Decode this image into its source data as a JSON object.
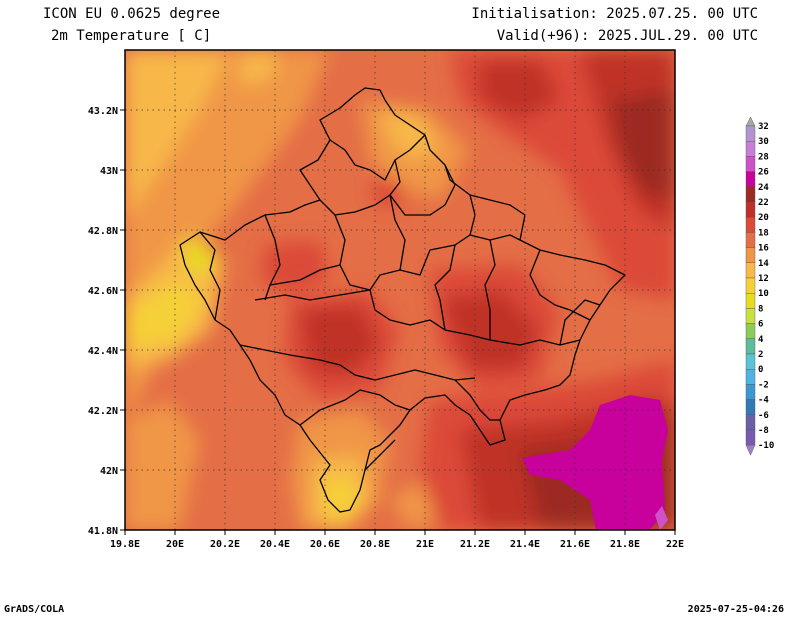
{
  "header": {
    "model": "ICON EU 0.0625 degree",
    "variable": "2m Temperature [ C]",
    "init": "Initialisation: 2025.07.25. 00 UTC",
    "valid": "Valid(+96): 2025.JUL.29. 00 UTC"
  },
  "footer": {
    "software": "GrADS/COLA",
    "timestamp": "2025-07-25-04:26"
  },
  "axes": {
    "x_ticks": [
      "19.8E",
      "20E",
      "20.2E",
      "20.4E",
      "20.6E",
      "20.8E",
      "21E",
      "21.2E",
      "21.4E",
      "21.6E",
      "21.8E",
      "22E"
    ],
    "y_ticks": [
      "43.2N",
      "43N",
      "42.8N",
      "42.6N",
      "42.4N",
      "42.2N",
      "42N",
      "41.8N"
    ]
  },
  "legend": {
    "labels": [
      "32",
      "30",
      "28",
      "26",
      "24",
      "22",
      "20",
      "18",
      "16",
      "14",
      "12",
      "10",
      "8",
      "6",
      "4",
      "2",
      "0",
      "-2",
      "-4",
      "-6",
      "-8",
      "-10"
    ],
    "colors": [
      "#b494d0",
      "#c67ed6",
      "#d050c8",
      "#c8009c",
      "#9c2a22",
      "#c03028",
      "#dc4a38",
      "#e46e46",
      "#f09646",
      "#f8b84a",
      "#f6d038",
      "#e8dc1c",
      "#c8e040",
      "#8ecc5a",
      "#5cbc9c",
      "#58c4d4",
      "#50b4e0",
      "#3c98d0",
      "#3478b8",
      "#6a60a8",
      "#7c58b0"
    ]
  }
}
